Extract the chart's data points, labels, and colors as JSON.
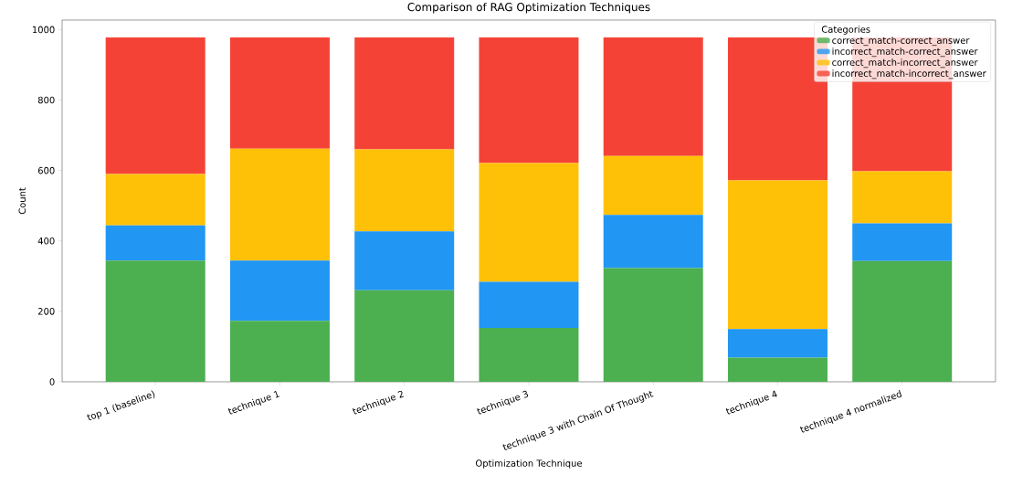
{
  "chart_data": {
    "type": "bar",
    "title": "Comparison of RAG Optimization Techniques",
    "xlabel": "Optimization Technique",
    "ylabel": "Count",
    "legend_title": "Categories",
    "categories": [
      "top 1 (baseline)",
      "technique 1",
      "technique 2",
      "technique 3",
      "technique 3 with Chain Of Thought",
      "technique 4",
      "technique 4 normalized"
    ],
    "stacked": true,
    "legend": "top right",
    "ylim": [
      0,
      1027
    ],
    "yticks": [
      0,
      200,
      400,
      600,
      800,
      1000
    ],
    "series": [
      {
        "name": "correct_match-correct_answer",
        "color": "#4caf50",
        "values": [
          344,
          173,
          260,
          153,
          323,
          69,
          343
        ]
      },
      {
        "name": "incorrect_match-correct_answer",
        "color": "#2196f3",
        "values": [
          100,
          171,
          167,
          131,
          151,
          81,
          107
        ]
      },
      {
        "name": "correct_match-incorrect_answer",
        "color": "#ffc107",
        "values": [
          146,
          318,
          233,
          337,
          167,
          422,
          148
        ]
      },
      {
        "name": "incorrect_match-incorrect_answer",
        "color": "#f44336",
        "values": [
          388,
          316,
          318,
          357,
          337,
          406,
          380
        ]
      }
    ]
  }
}
